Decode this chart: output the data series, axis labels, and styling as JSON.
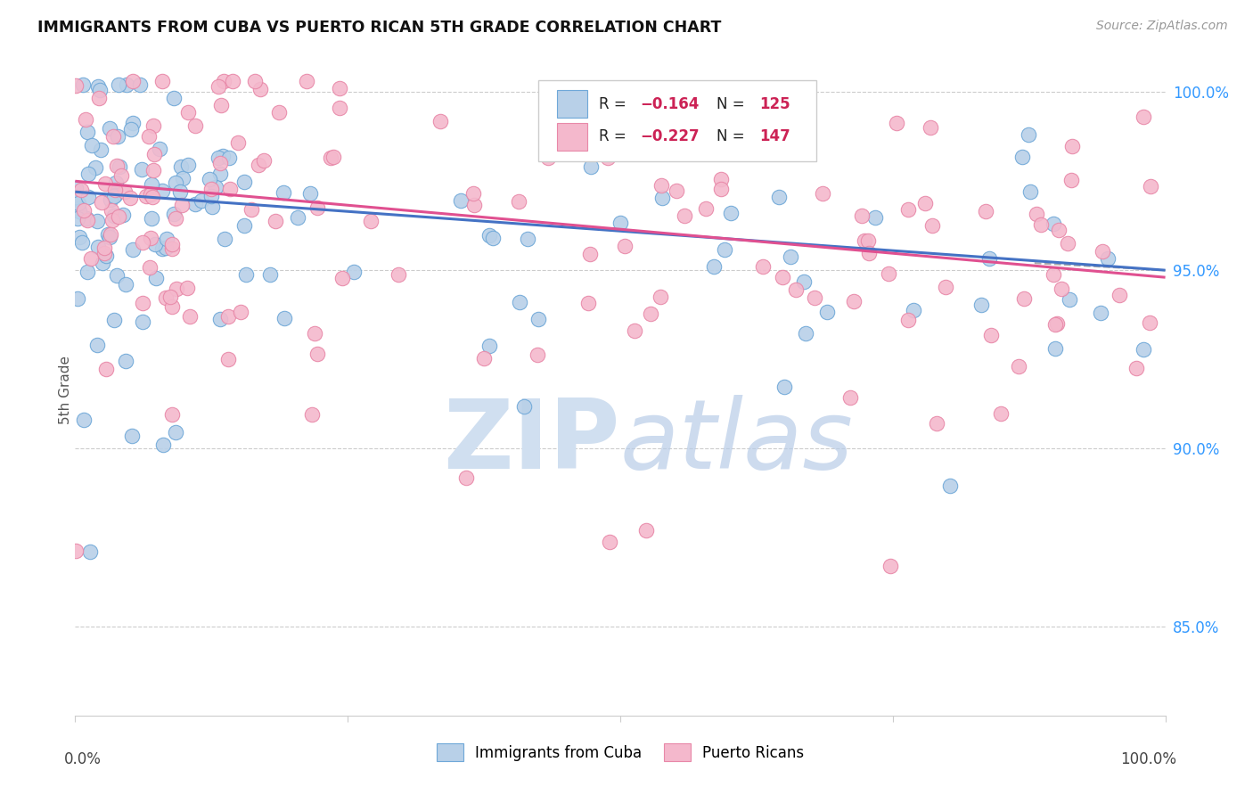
{
  "title": "IMMIGRANTS FROM CUBA VS PUERTO RICAN 5TH GRADE CORRELATION CHART",
  "source": "Source: ZipAtlas.com",
  "ylabel": "5th Grade",
  "legend_cuba": "Immigrants from Cuba",
  "legend_pr": "Puerto Ricans",
  "xlim": [
    0.0,
    1.0
  ],
  "ylim": [
    0.825,
    1.008
  ],
  "yticks": [
    0.85,
    0.9,
    0.95,
    1.0
  ],
  "ytick_labels": [
    "85.0%",
    "90.0%",
    "95.0%",
    "100.0%"
  ],
  "color_cuba_fill": "#b8d0e8",
  "color_cuba_edge": "#6fa8d8",
  "color_pr_fill": "#f4b8cc",
  "color_pr_edge": "#e888a8",
  "color_cuba_line": "#4472c4",
  "color_pr_line": "#e05090",
  "color_dashed": "#aaaaaa",
  "background_color": "#ffffff",
  "watermark_color": "#d0dff0",
  "R_cuba": "-0.164",
  "N_cuba": "125",
  "R_pr": "-0.227",
  "N_pr": "147",
  "cuba_line_x0": 0.0,
  "cuba_line_y0": 0.972,
  "cuba_line_x1": 1.0,
  "cuba_line_y1": 0.95,
  "pr_line_x0": 0.0,
  "pr_line_y0": 0.975,
  "pr_line_x1": 1.0,
  "pr_line_y1": 0.948,
  "dashed_line_x0": 0.88,
  "dashed_line_y0": 0.952,
  "dashed_line_x1": 1.0,
  "dashed_line_y1": 0.95,
  "marker_size": 140
}
